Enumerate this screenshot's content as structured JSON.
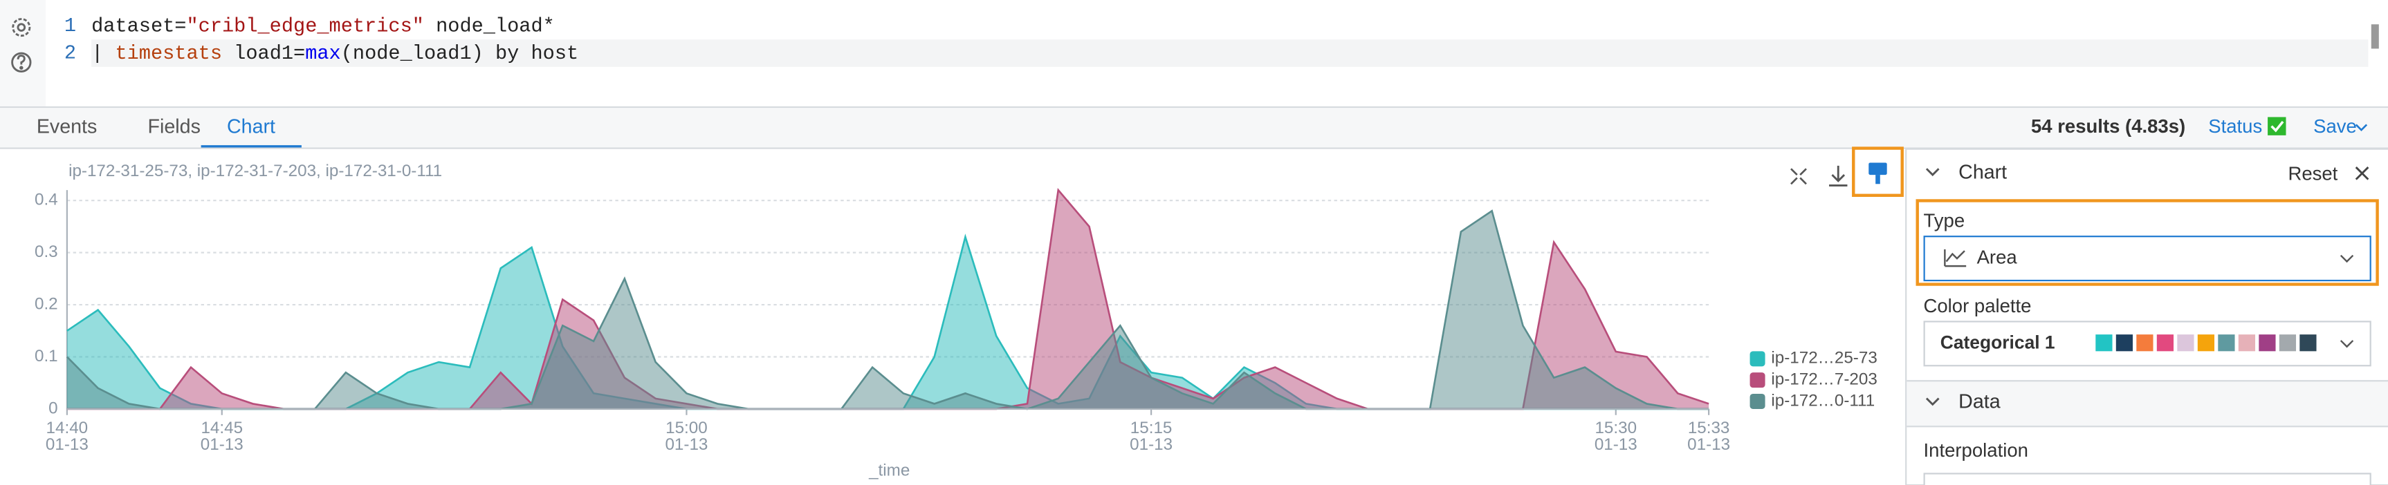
{
  "editor": {
    "line_numbers": [
      1,
      2
    ],
    "lines": [
      [
        "dataset=",
        "\"cribl_edge_metrics\"",
        " node_load*"
      ],
      [
        "| ",
        "timestats",
        " load1=",
        "max",
        "(node_load1) by host"
      ]
    ]
  },
  "tabs": [
    "Events",
    "Fields",
    "Chart"
  ],
  "active_tab": 2,
  "status_bar": {
    "results": "54 results (4.83s)",
    "status": "Status",
    "save": "Save"
  },
  "chart_data": {
    "type": "area",
    "subtitle": "ip-172-31-25-73, ip-172-31-7-203, ip-172-31-0-111",
    "x_label": "_time",
    "x": [
      "01-13 14:40",
      "01-13 14:41",
      "01-13 14:42",
      "01-13 14:43",
      "01-13 14:44",
      "01-13 14:45",
      "01-13 14:46",
      "01-13 14:47",
      "01-13 14:48",
      "01-13 14:49",
      "01-13 14:50",
      "01-13 14:51",
      "01-13 14:52",
      "01-13 14:53",
      "01-13 14:54",
      "01-13 14:55",
      "01-13 14:56",
      "01-13 14:57",
      "01-13 14:58",
      "01-13 14:59",
      "01-13 15:00",
      "01-13 15:01",
      "01-13 15:02",
      "01-13 15:03",
      "01-13 15:04",
      "01-13 15:05",
      "01-13 15:06",
      "01-13 15:07",
      "01-13 15:08",
      "01-13 15:09",
      "01-13 15:10",
      "01-13 15:11",
      "01-13 15:12",
      "01-13 15:13",
      "01-13 15:14",
      "01-13 15:15",
      "01-13 15:16",
      "01-13 15:17",
      "01-13 15:18",
      "01-13 15:19",
      "01-13 15:20",
      "01-13 15:21",
      "01-13 15:22",
      "01-13 15:23",
      "01-13 15:24",
      "01-13 15:25",
      "01-13 15:26",
      "01-13 15:27",
      "01-13 15:28",
      "01-13 15:29",
      "01-13 15:30",
      "01-13 15:31",
      "01-13 15:32",
      "01-13 15:33"
    ],
    "series": [
      {
        "name": "ip-172…25-73",
        "color": "#2bbcbc",
        "values": [
          0.15,
          0.19,
          0.12,
          0.04,
          0.01,
          0,
          0,
          0,
          0,
          0,
          0.03,
          0.07,
          0.09,
          0.08,
          0.27,
          0.31,
          0.12,
          0.03,
          0.02,
          0.01,
          0,
          0,
          0,
          0,
          0,
          0,
          0,
          0,
          0.1,
          0.33,
          0.14,
          0.04,
          0.01,
          0.02,
          0.14,
          0.07,
          0.06,
          0.02,
          0.08,
          0.05,
          0.01,
          0,
          0,
          0,
          0,
          0,
          0,
          0,
          0,
          0,
          0,
          0,
          0,
          0
        ]
      },
      {
        "name": "ip-172…7-203",
        "color": "#b84e7b",
        "values": [
          0,
          0,
          0,
          0,
          0.08,
          0.03,
          0.01,
          0,
          0,
          0,
          0,
          0,
          0,
          0,
          0.07,
          0.01,
          0.21,
          0.17,
          0.06,
          0.02,
          0.01,
          0,
          0,
          0,
          0,
          0,
          0,
          0,
          0,
          0,
          0,
          0.01,
          0.42,
          0.35,
          0.09,
          0.06,
          0.04,
          0.02,
          0.06,
          0.08,
          0.05,
          0.02,
          0,
          0,
          0,
          0,
          0,
          0,
          0.32,
          0.23,
          0.11,
          0.1,
          0.03,
          0.01
        ]
      },
      {
        "name": "ip-172…0-111",
        "color": "#5b8e8f",
        "values": [
          0.1,
          0.04,
          0.01,
          0,
          0,
          0,
          0,
          0,
          0,
          0.07,
          0.03,
          0.01,
          0,
          0,
          0,
          0.01,
          0.16,
          0.13,
          0.25,
          0.09,
          0.03,
          0.01,
          0,
          0,
          0,
          0,
          0.08,
          0.03,
          0.01,
          0.03,
          0.01,
          0,
          0.02,
          0.09,
          0.16,
          0.06,
          0.03,
          0.01,
          0.07,
          0.03,
          0,
          0,
          0,
          0,
          0,
          0.34,
          0.38,
          0.16,
          0.06,
          0.08,
          0.04,
          0.01,
          0,
          0
        ]
      }
    ],
    "xlim": [
      "01-13 14:40",
      "01-13 15:33"
    ],
    "xticks": [
      {
        "value": "01-13 14:40",
        "label": [
          "14:40",
          "01-13"
        ]
      },
      {
        "value": "01-13 14:45",
        "label": [
          "14:45",
          "01-13"
        ]
      },
      {
        "value": "01-13 15:00",
        "label": [
          "15:00",
          "01-13"
        ]
      },
      {
        "value": "01-13 15:15",
        "label": [
          "15:15",
          "01-13"
        ]
      },
      {
        "value": "01-13 15:30",
        "label": [
          "15:30",
          "01-13"
        ]
      },
      {
        "value": "01-13 15:33",
        "label": [
          "15:33",
          "01-13"
        ]
      }
    ],
    "ylim": [
      0,
      0.42
    ],
    "yticks": [
      0,
      0.1,
      0.2,
      0.3,
      0.4
    ],
    "grid": true,
    "legend": "right"
  },
  "panel": {
    "title": "Chart",
    "reset": "Reset",
    "type_label": "Type",
    "type_value": "Area",
    "palette_label": "Color palette",
    "palette_value": "Categorical 1",
    "palette_colors": [
      "#22c4c4",
      "#1d3f5f",
      "#f47c3c",
      "#e2497f",
      "#dcc6dc",
      "#f5a40c",
      "#5f9aa0",
      "#e6b1b8",
      "#a03f86",
      "#a3a9ad",
      "#2f4858"
    ],
    "data_section": "Data",
    "interpolation_label": "Interpolation"
  }
}
